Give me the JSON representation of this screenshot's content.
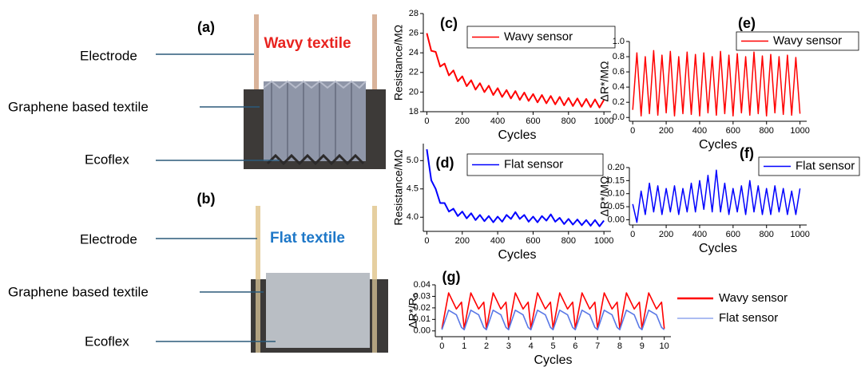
{
  "panels": [
    {
      "label": "(a)",
      "title": "Wavy textile",
      "callouts": [
        "Electrode",
        "Graphene based textile",
        "Ecoflex"
      ]
    },
    {
      "label": "(b)",
      "title": "Flat textile",
      "callouts": [
        "Electrode",
        "Graphene based textile",
        "Ecoflex"
      ]
    }
  ],
  "chart_data": [
    {
      "type": "line",
      "panel_label": "(c)",
      "xlabel": "Cycles",
      "ylabel": "Resistance/MΩ",
      "legend": "upper right",
      "x": [
        0,
        25,
        50,
        75,
        100,
        125,
        150,
        175,
        200,
        225,
        250,
        275,
        300,
        325,
        350,
        375,
        400,
        425,
        450,
        475,
        500,
        525,
        550,
        575,
        600,
        625,
        650,
        675,
        700,
        725,
        750,
        775,
        800,
        825,
        850,
        875,
        900,
        925,
        950,
        975,
        1000
      ],
      "series": [
        {
          "name": "Wavy sensor",
          "color": "#ff0000",
          "values": [
            26.0,
            24.2,
            24.1,
            22.6,
            22.9,
            21.7,
            22.2,
            21.1,
            21.6,
            20.6,
            21.2,
            20.25,
            20.9,
            20.0,
            20.65,
            19.7,
            20.4,
            19.5,
            20.2,
            19.35,
            20.1,
            19.2,
            19.95,
            19.1,
            19.8,
            18.95,
            19.7,
            18.85,
            19.6,
            18.75,
            19.5,
            18.65,
            19.4,
            18.58,
            19.35,
            18.52,
            19.3,
            18.47,
            19.25,
            18.42,
            19.2
          ]
        }
      ],
      "xlim": [
        -20,
        1040
      ],
      "ylim": [
        18,
        28
      ],
      "xticks": [
        0,
        200,
        400,
        600,
        800,
        1000
      ],
      "yticks": [
        18,
        20,
        22,
        24,
        26,
        28
      ]
    },
    {
      "type": "line",
      "panel_label": "(d)",
      "xlabel": "Cycles",
      "ylabel": "Resistance/MΩ",
      "legend": "upper right",
      "x": [
        0,
        25,
        50,
        75,
        100,
        125,
        150,
        175,
        200,
        225,
        250,
        275,
        300,
        325,
        350,
        375,
        400,
        425,
        450,
        475,
        500,
        525,
        550,
        575,
        600,
        625,
        650,
        675,
        700,
        725,
        750,
        775,
        800,
        825,
        850,
        875,
        900,
        925,
        950,
        975,
        1000
      ],
      "series": [
        {
          "name": "Flat sensor",
          "color": "#0000ff",
          "values": [
            5.2,
            4.65,
            4.5,
            4.25,
            4.25,
            4.1,
            4.15,
            4.02,
            4.1,
            3.98,
            4.07,
            3.95,
            4.04,
            3.93,
            4.02,
            3.91,
            4.01,
            3.92,
            4.04,
            3.97,
            4.09,
            3.97,
            4.04,
            3.92,
            4.01,
            3.91,
            4.02,
            3.94,
            4.05,
            3.92,
            3.99,
            3.88,
            3.97,
            3.87,
            3.96,
            3.86,
            3.95,
            3.85,
            3.95,
            3.84,
            3.94
          ]
        }
      ],
      "xlim": [
        -20,
        1040
      ],
      "ylim": [
        3.75,
        5.3
      ],
      "xticks": [
        0,
        200,
        400,
        600,
        800,
        1000
      ],
      "yticks": [
        {
          "value": 4,
          "label": "4.0"
        },
        4.5,
        {
          "value": 5,
          "label": "5.0"
        }
      ]
    },
    {
      "type": "line",
      "panel_label": "(e)",
      "xlabel": "Cycles",
      "ylabel": "ΔR*/MΩ",
      "legend": "upper right",
      "x": [
        0,
        25,
        50,
        75,
        100,
        125,
        150,
        175,
        200,
        225,
        250,
        275,
        300,
        325,
        350,
        375,
        400,
        425,
        450,
        475,
        500,
        525,
        550,
        575,
        600,
        625,
        650,
        675,
        700,
        725,
        750,
        775,
        800,
        825,
        850,
        875,
        900,
        925,
        950,
        975,
        1000
      ],
      "series": [
        {
          "name": "Wavy sensor",
          "color": "#ff0000",
          "values": [
            0.1,
            0.85,
            0.02,
            0.8,
            0.05,
            0.88,
            0.03,
            0.82,
            0.06,
            0.87,
            0.02,
            0.8,
            0.05,
            0.86,
            0.04,
            0.83,
            0.02,
            0.85,
            0.06,
            0.8,
            0.03,
            0.87,
            0.05,
            0.82,
            0.02,
            0.84,
            0.06,
            0.8,
            0.03,
            0.86,
            0.05,
            0.81,
            0.02,
            0.83,
            0.06,
            0.8,
            0.04,
            0.82,
            0.03,
            0.79,
            0.05
          ]
        }
      ],
      "xlim": [
        -20,
        1040
      ],
      "ylim": [
        -0.05,
        1.0
      ],
      "xticks": [
        0,
        200,
        400,
        600,
        800,
        1000
      ],
      "yticks": [
        {
          "value": 0,
          "label": "0.0"
        },
        0.2,
        0.4,
        0.6,
        0.8,
        {
          "value": 1,
          "label": "1.0"
        }
      ]
    },
    {
      "type": "line",
      "panel_label": "(f)",
      "xlabel": "Cycles",
      "ylabel": "ΔR*/MΩ",
      "legend": "upper right",
      "x": [
        0,
        25,
        50,
        75,
        100,
        125,
        150,
        175,
        200,
        225,
        250,
        275,
        300,
        325,
        350,
        375,
        400,
        425,
        450,
        475,
        500,
        525,
        550,
        575,
        600,
        625,
        650,
        675,
        700,
        725,
        750,
        775,
        800,
        825,
        850,
        875,
        900,
        925,
        950,
        975,
        1000
      ],
      "series": [
        {
          "name": "Flat sensor",
          "color": "#0000ff",
          "values": [
            0.06,
            -0.01,
            0.11,
            0.02,
            0.14,
            0.03,
            0.13,
            0.02,
            0.12,
            0.03,
            0.13,
            0.02,
            0.12,
            0.03,
            0.14,
            0.03,
            0.15,
            0.04,
            0.17,
            0.03,
            0.19,
            0.03,
            0.14,
            0.02,
            0.12,
            0.03,
            0.13,
            0.02,
            0.15,
            0.03,
            0.13,
            0.02,
            0.12,
            0.02,
            0.13,
            0.03,
            0.12,
            0.02,
            0.11,
            0.02,
            0.12
          ]
        }
      ],
      "xlim": [
        -20,
        1040
      ],
      "ylim": [
        -0.02,
        0.2
      ],
      "xticks": [
        0,
        200,
        400,
        600,
        800,
        1000
      ],
      "yticks": [
        {
          "value": 0,
          "label": "0.00"
        },
        0.05,
        {
          "value": 0.1,
          "label": "0.10"
        },
        0.15,
        {
          "value": 0.2,
          "label": "0.20"
        }
      ]
    },
    {
      "type": "line",
      "panel_label": "(g)",
      "xlabel": "Cycles",
      "ylabel": "ΔR*/R₀",
      "legend": "outside right",
      "x": [
        0,
        0.3,
        0.65,
        0.88,
        1,
        1.3,
        1.65,
        1.88,
        2,
        2.3,
        2.65,
        2.88,
        3,
        3.3,
        3.65,
        3.88,
        4,
        4.3,
        4.65,
        4.88,
        5,
        5.3,
        5.65,
        5.88,
        6,
        6.3,
        6.65,
        6.88,
        7,
        7.3,
        7.65,
        7.88,
        8,
        8.3,
        8.65,
        8.88,
        9,
        9.3,
        9.65,
        9.88,
        10
      ],
      "series": [
        {
          "name": "Wavy sensor",
          "color": "#ff0000",
          "values": [
            0.002,
            0.033,
            0.019,
            0.025,
            0.002,
            0.033,
            0.019,
            0.025,
            0.002,
            0.033,
            0.019,
            0.025,
            0.002,
            0.033,
            0.019,
            0.025,
            0.002,
            0.033,
            0.019,
            0.025,
            0.002,
            0.033,
            0.019,
            0.025,
            0.002,
            0.033,
            0.019,
            0.025,
            0.002,
            0.033,
            0.019,
            0.025,
            0.002,
            0.033,
            0.019,
            0.025,
            0.002,
            0.033,
            0.019,
            0.025,
            0.002
          ]
        },
        {
          "name": "Flat sensor",
          "color": "#5a78e6",
          "values": [
            0.001,
            0.018,
            0.014,
            0.003,
            0.001,
            0.018,
            0.014,
            0.003,
            0.001,
            0.018,
            0.014,
            0.003,
            0.001,
            0.018,
            0.014,
            0.003,
            0.001,
            0.018,
            0.014,
            0.003,
            0.001,
            0.018,
            0.014,
            0.003,
            0.001,
            0.018,
            0.014,
            0.003,
            0.001,
            0.018,
            0.014,
            0.003,
            0.001,
            0.018,
            0.014,
            0.003,
            0.001,
            0.018,
            0.014,
            0.003,
            0.001
          ]
        }
      ],
      "xlim": [
        -0.3,
        10.3
      ],
      "ylim": [
        -0.005,
        0.04
      ],
      "xticks": [
        0,
        1,
        2,
        3,
        4,
        5,
        6,
        7,
        8,
        9,
        10
      ],
      "yticks": [
        {
          "value": 0,
          "label": "0.00"
        },
        0.01,
        0.02,
        0.03,
        0.04
      ]
    }
  ]
}
